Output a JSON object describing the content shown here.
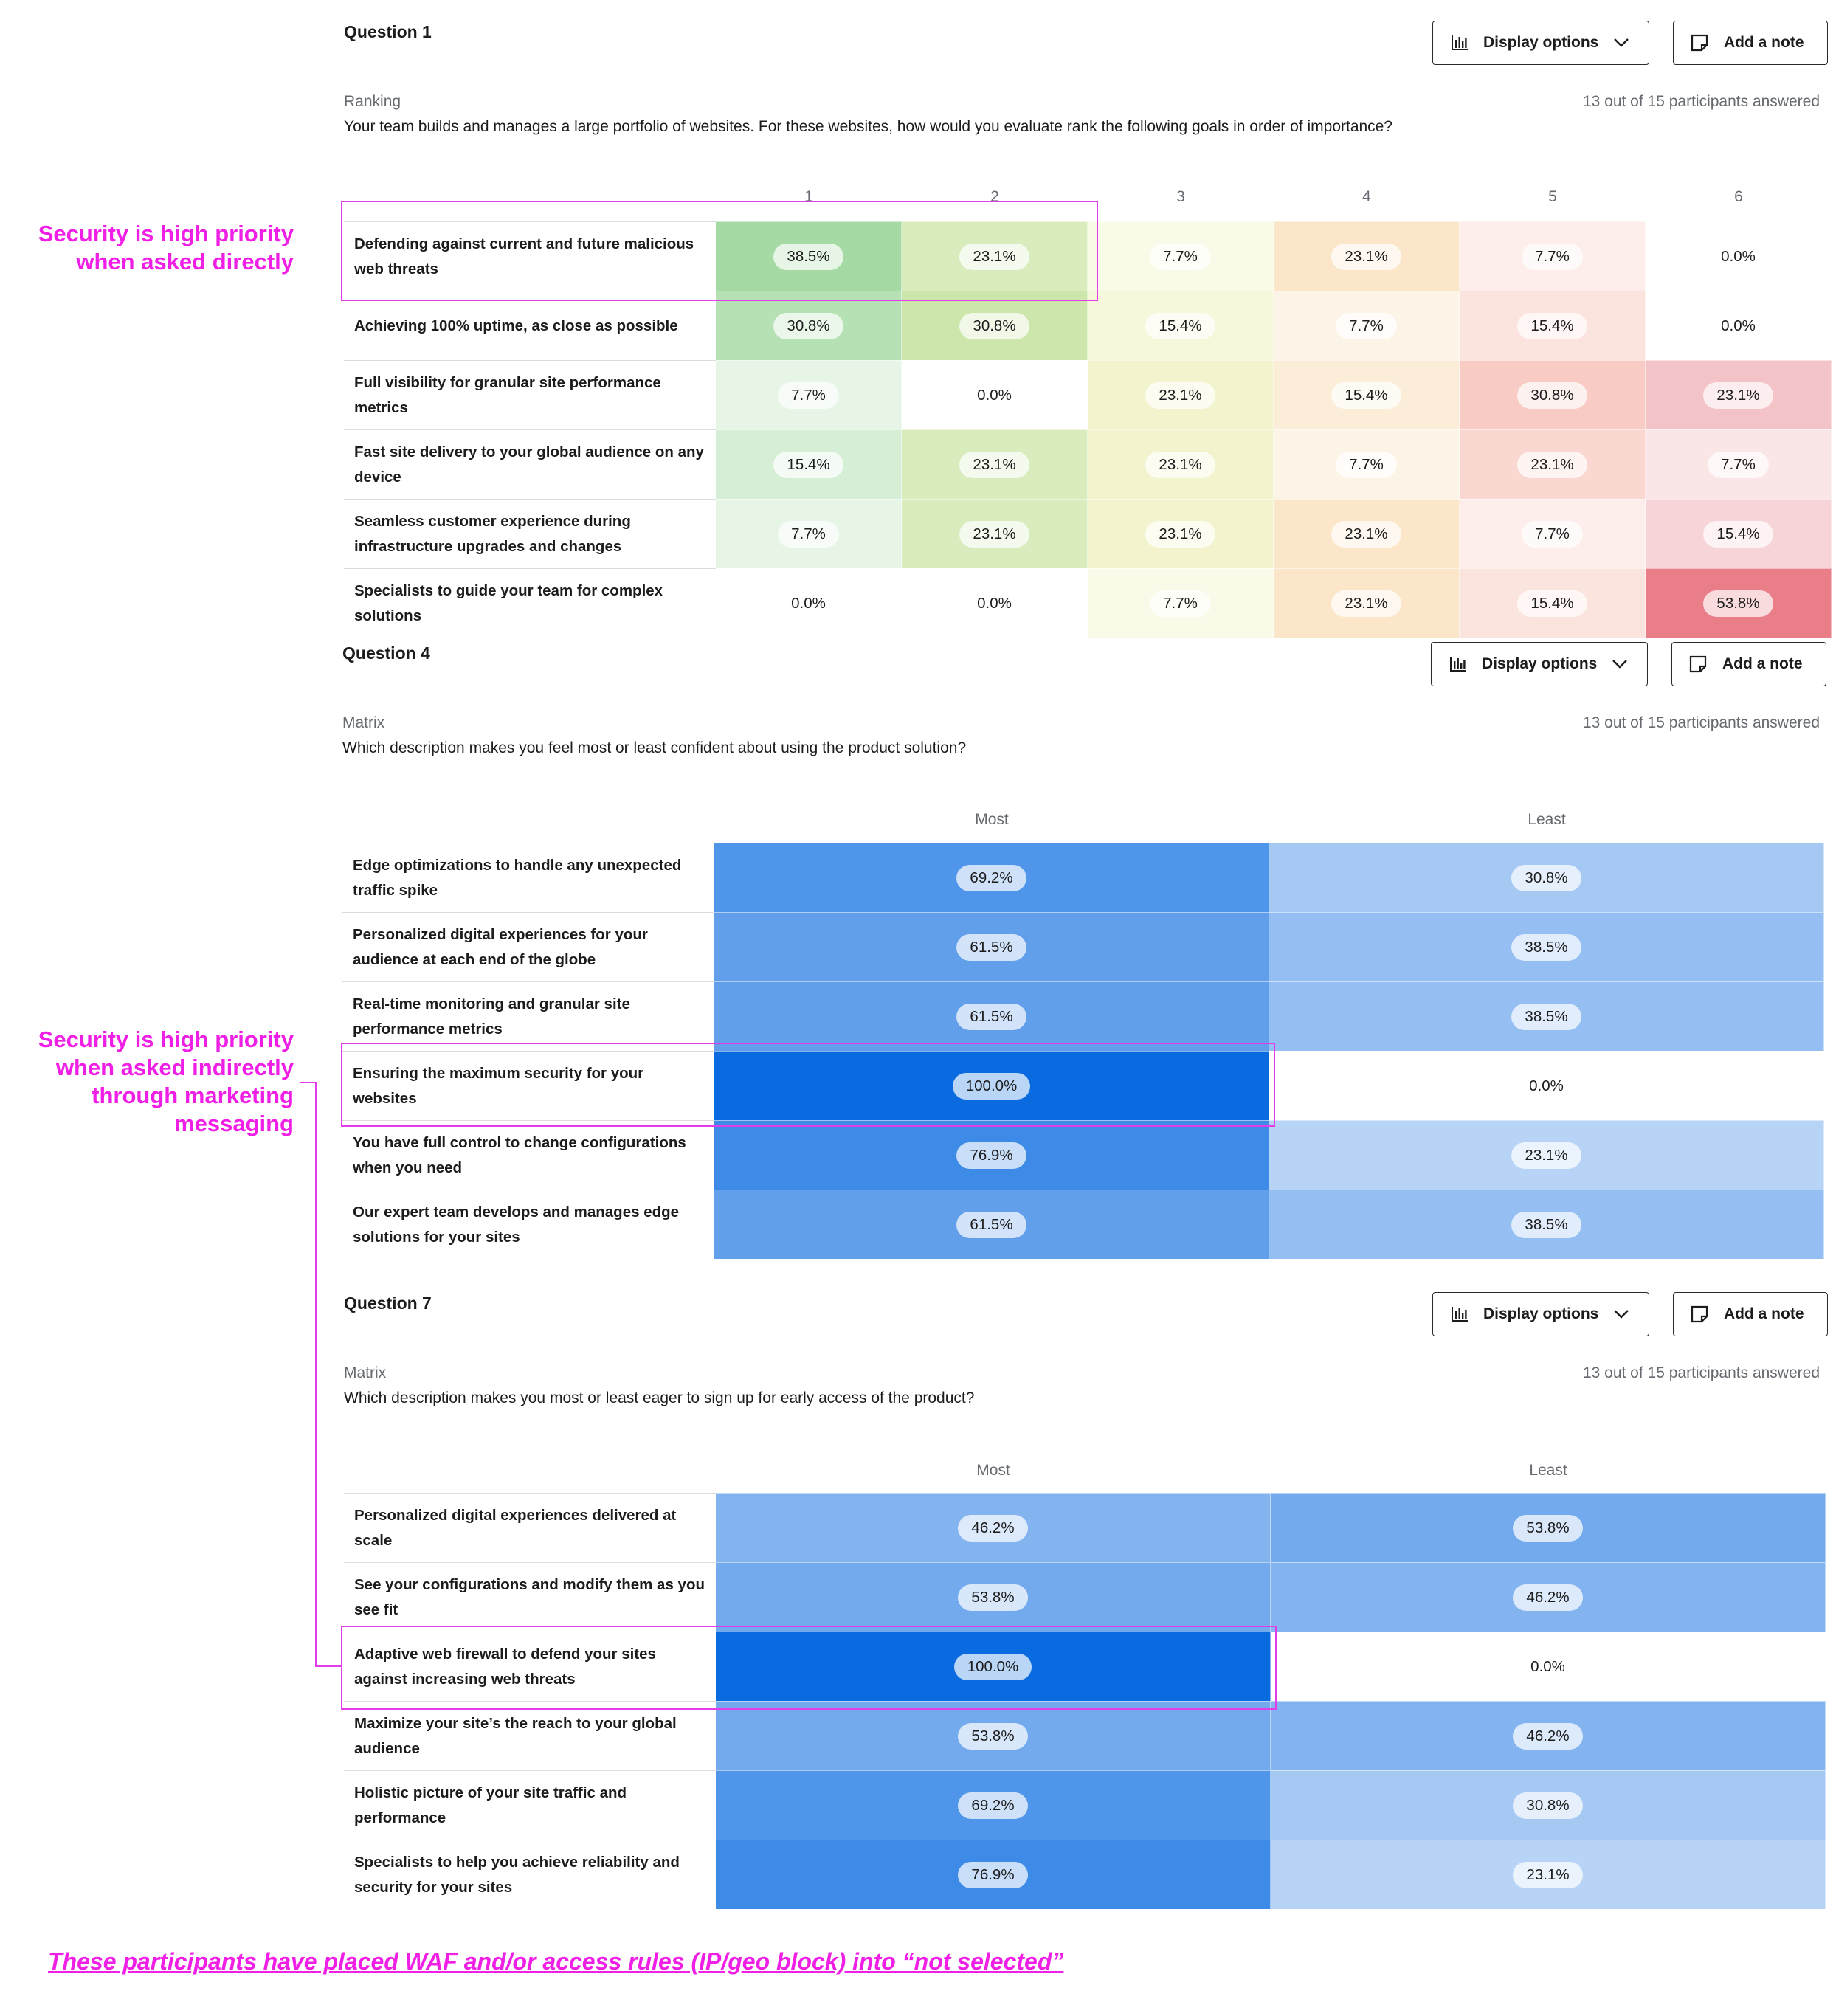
{
  "annotations": {
    "direct": [
      "Security is high priority",
      "when asked directly"
    ],
    "indirect": [
      "Security is high priority",
      "when asked indirectly",
      "through marketing",
      "messaging"
    ],
    "footnote": "These participants have placed WAF and/or access rules (IP/geo block) into “not selected”"
  },
  "buttons": {
    "display_options": "Display options",
    "add_note": "Add a note"
  },
  "questions": [
    {
      "title": "Question 1",
      "type": "Ranking",
      "text": "Your team builds and manages a large portfolio of websites. For these websites, how would you evaluate rank the following goals in order of importance?",
      "answered": "13 out of 15 participants answered",
      "columns": [
        "1",
        "2",
        "3",
        "4",
        "5",
        "6"
      ],
      "rows": [
        {
          "label": "Defending against current and future malicious web threats",
          "values": [
            "38.5%",
            "23.1%",
            "7.7%",
            "23.1%",
            "7.7%",
            "0.0%"
          ]
        },
        {
          "label": "Achieving 100% uptime, as close as possible",
          "values": [
            "30.8%",
            "30.8%",
            "15.4%",
            "7.7%",
            "15.4%",
            "0.0%"
          ]
        },
        {
          "label": "Full visibility for granular site performance metrics",
          "values": [
            "7.7%",
            "0.0%",
            "23.1%",
            "15.4%",
            "30.8%",
            "23.1%"
          ]
        },
        {
          "label": "Fast site delivery to your global audience on any device",
          "values": [
            "15.4%",
            "23.1%",
            "23.1%",
            "7.7%",
            "23.1%",
            "7.7%"
          ]
        },
        {
          "label": "Seamless customer experience during infrastructure upgrades and changes",
          "values": [
            "7.7%",
            "23.1%",
            "23.1%",
            "23.1%",
            "7.7%",
            "15.4%"
          ]
        },
        {
          "label": "Specialists to guide your team for complex solutions",
          "values": [
            "0.0%",
            "0.0%",
            "7.7%",
            "23.1%",
            "15.4%",
            "53.8%"
          ]
        }
      ],
      "column_palette": [
        "#56b954",
        "#8cc63f",
        "#dbe06a",
        "#f3b55f",
        "#f08a78",
        "#e04d5b"
      ]
    },
    {
      "title": "Question 4",
      "type": "Matrix",
      "text": "Which description makes you feel most or least confident about using the product solution?",
      "answered": "13 out of 15 participants answered",
      "columns": [
        "Most",
        "Least"
      ],
      "rows": [
        {
          "label": "Edge optimizations to handle any unexpected traffic spike",
          "values": [
            "69.2%",
            "30.8%"
          ]
        },
        {
          "label": "Personalized digital experiences for your audience at each end of the globe",
          "values": [
            "61.5%",
            "38.5%"
          ]
        },
        {
          "label": "Real-time monitoring and granular site performance metrics",
          "values": [
            "61.5%",
            "38.5%"
          ]
        },
        {
          "label": "Ensuring the maximum security for your websites",
          "values": [
            "100.0%",
            "0.0%"
          ]
        },
        {
          "label": "You have full control to change configurations when you need",
          "values": [
            "76.9%",
            "23.1%"
          ]
        },
        {
          "label": "Our expert team develops and manages edge solutions for your sites",
          "values": [
            "61.5%",
            "38.5%"
          ]
        }
      ]
    },
    {
      "title": "Question 7",
      "type": "Matrix",
      "text": "Which description makes you most or least eager to sign up for early access of the product?",
      "answered": "13 out of 15 participants answered",
      "columns": [
        "Most",
        "Least"
      ],
      "rows": [
        {
          "label": "Personalized digital experiences delivered at scale",
          "values": [
            "46.2%",
            "53.8%"
          ]
        },
        {
          "label": "See your configurations and modify them as you see fit",
          "values": [
            "53.8%",
            "46.2%"
          ]
        },
        {
          "label": "Adaptive web firewall to defend your sites against increasing web threats",
          "values": [
            "100.0%",
            "0.0%"
          ]
        },
        {
          "label": "Maximize your site’s the reach to your global audience",
          "values": [
            "53.8%",
            "46.2%"
          ]
        },
        {
          "label": "Holistic picture of your site traffic and performance",
          "values": [
            "69.2%",
            "30.8%"
          ]
        },
        {
          "label": "Specialists to help you achieve reliability and security for your sites",
          "values": [
            "76.9%",
            "23.1%"
          ]
        }
      ]
    }
  ],
  "matrix_color": "#0a6be0"
}
